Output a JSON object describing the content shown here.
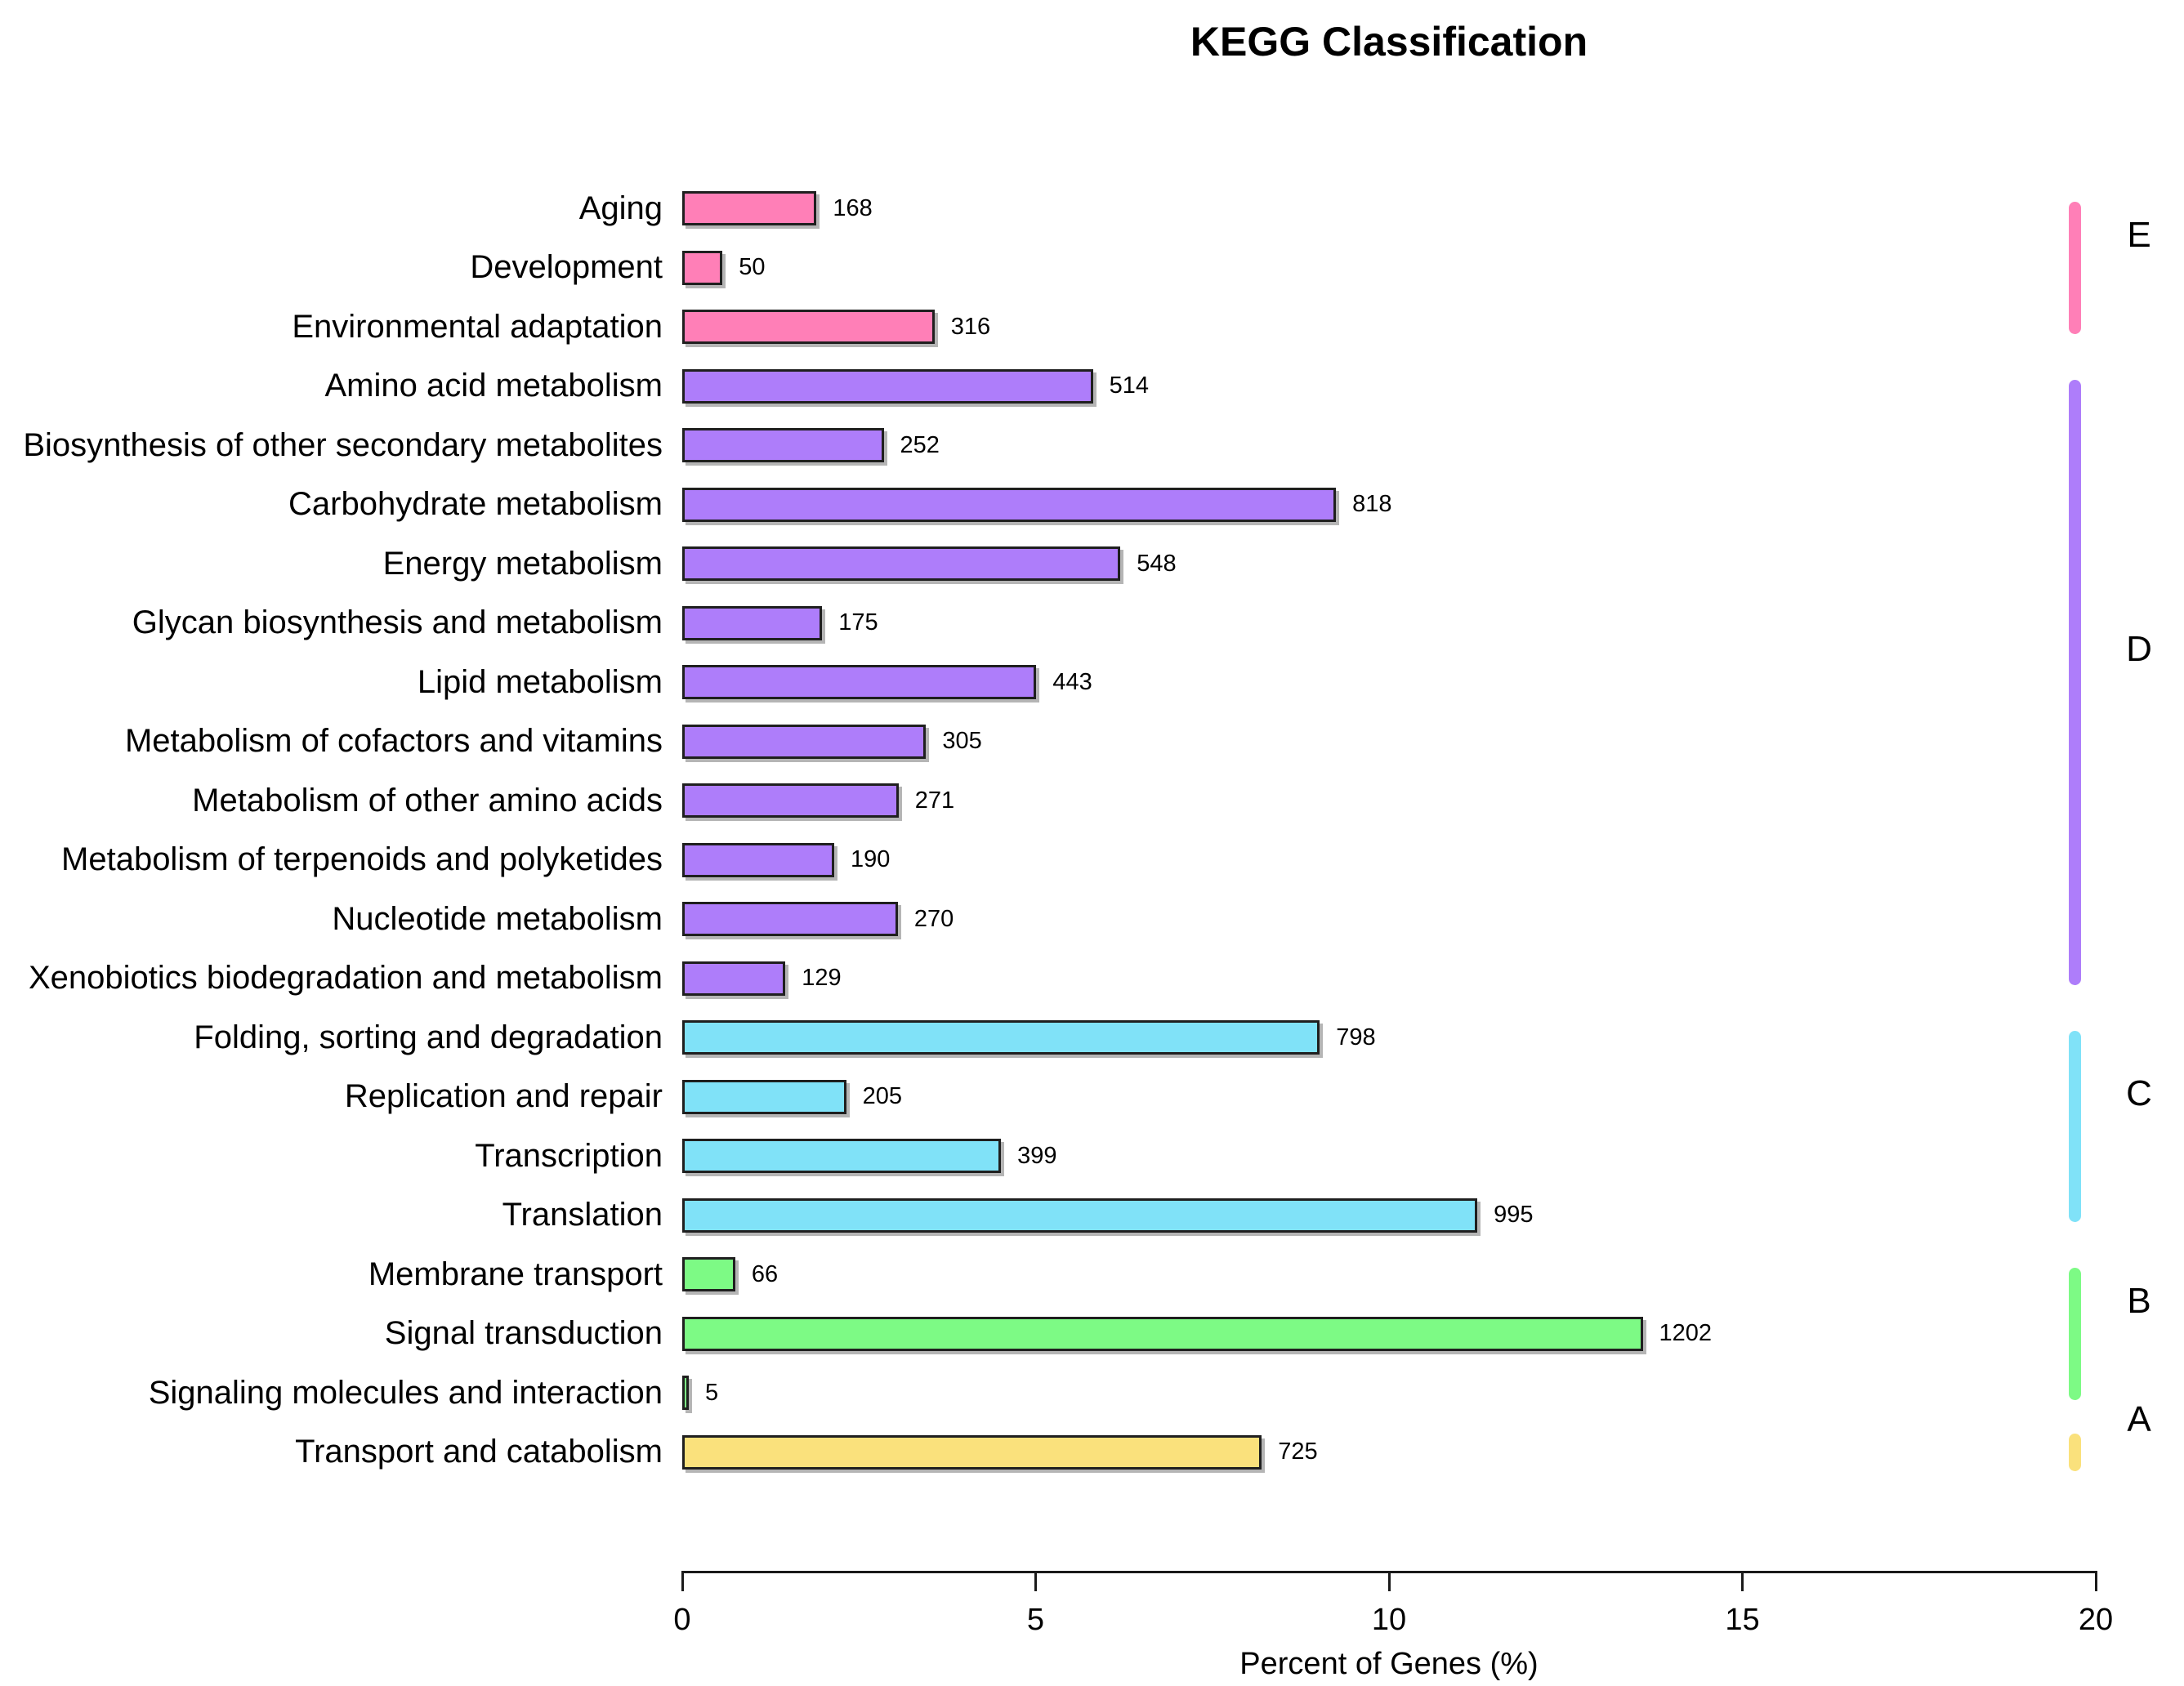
{
  "figure": {
    "background": "#ffffff"
  },
  "chart_data": {
    "type": "bar",
    "orientation": "horizontal",
    "title": "KEGG Classification",
    "xlabel": "Percent of Genes (%)",
    "xlim": [
      0,
      20
    ],
    "xticks": [
      0,
      5,
      10,
      15,
      20
    ],
    "grid": false,
    "legend_position": "right-group-letters",
    "bar_border_color": "#1f1f1f",
    "shadow_color": "#9a9a9a",
    "items": [
      {
        "label": "Aging",
        "value": 168,
        "percent": 1.9,
        "group": "E"
      },
      {
        "label": "Development",
        "value": 50,
        "percent": 0.57,
        "group": "E"
      },
      {
        "label": "Environmental adaptation",
        "value": 316,
        "percent": 3.57,
        "group": "E"
      },
      {
        "label": "Amino acid metabolism",
        "value": 514,
        "percent": 5.81,
        "group": "D"
      },
      {
        "label": "Biosynthesis of other secondary metabolites",
        "value": 252,
        "percent": 2.85,
        "group": "D"
      },
      {
        "label": "Carbohydrate metabolism",
        "value": 818,
        "percent": 9.25,
        "group": "D"
      },
      {
        "label": "Energy metabolism",
        "value": 548,
        "percent": 6.2,
        "group": "D"
      },
      {
        "label": "Glycan biosynthesis and metabolism",
        "value": 175,
        "percent": 1.98,
        "group": "D"
      },
      {
        "label": "Lipid metabolism",
        "value": 443,
        "percent": 5.01,
        "group": "D"
      },
      {
        "label": "Metabolism of cofactors and vitamins",
        "value": 305,
        "percent": 3.45,
        "group": "D"
      },
      {
        "label": "Metabolism of other amino acids",
        "value": 271,
        "percent": 3.06,
        "group": "D"
      },
      {
        "label": "Metabolism of terpenoids and polyketides",
        "value": 190,
        "percent": 2.15,
        "group": "D"
      },
      {
        "label": "Nucleotide metabolism",
        "value": 270,
        "percent": 3.05,
        "group": "D"
      },
      {
        "label": "Xenobiotics biodegradation and metabolism",
        "value": 129,
        "percent": 1.46,
        "group": "D"
      },
      {
        "label": "Folding, sorting and degradation",
        "value": 798,
        "percent": 9.02,
        "group": "C"
      },
      {
        "label": "Replication and repair",
        "value": 205,
        "percent": 2.32,
        "group": "C"
      },
      {
        "label": "Transcription",
        "value": 399,
        "percent": 4.51,
        "group": "C"
      },
      {
        "label": "Translation",
        "value": 995,
        "percent": 11.25,
        "group": "C"
      },
      {
        "label": "Membrane transport",
        "value": 66,
        "percent": 0.75,
        "group": "B"
      },
      {
        "label": "Signal transduction",
        "value": 1202,
        "percent": 13.59,
        "group": "B"
      },
      {
        "label": "Signaling molecules and interaction",
        "value": 5,
        "percent": 0.06,
        "group": "B"
      },
      {
        "label": "Transport and catabolism",
        "value": 725,
        "percent": 8.2,
        "group": "A"
      }
    ],
    "groups": [
      {
        "letter": "E",
        "color": "#ff7fb7",
        "first_row": 0,
        "last_row": 2
      },
      {
        "letter": "D",
        "color": "#ae7dfa",
        "first_row": 3,
        "last_row": 13
      },
      {
        "letter": "C",
        "color": "#80e2f8",
        "first_row": 14,
        "last_row": 17
      },
      {
        "letter": "B",
        "color": "#7dfa85",
        "first_row": 18,
        "last_row": 20
      },
      {
        "letter": "A",
        "color": "#fae17c",
        "first_row": 21,
        "last_row": 21
      }
    ]
  }
}
